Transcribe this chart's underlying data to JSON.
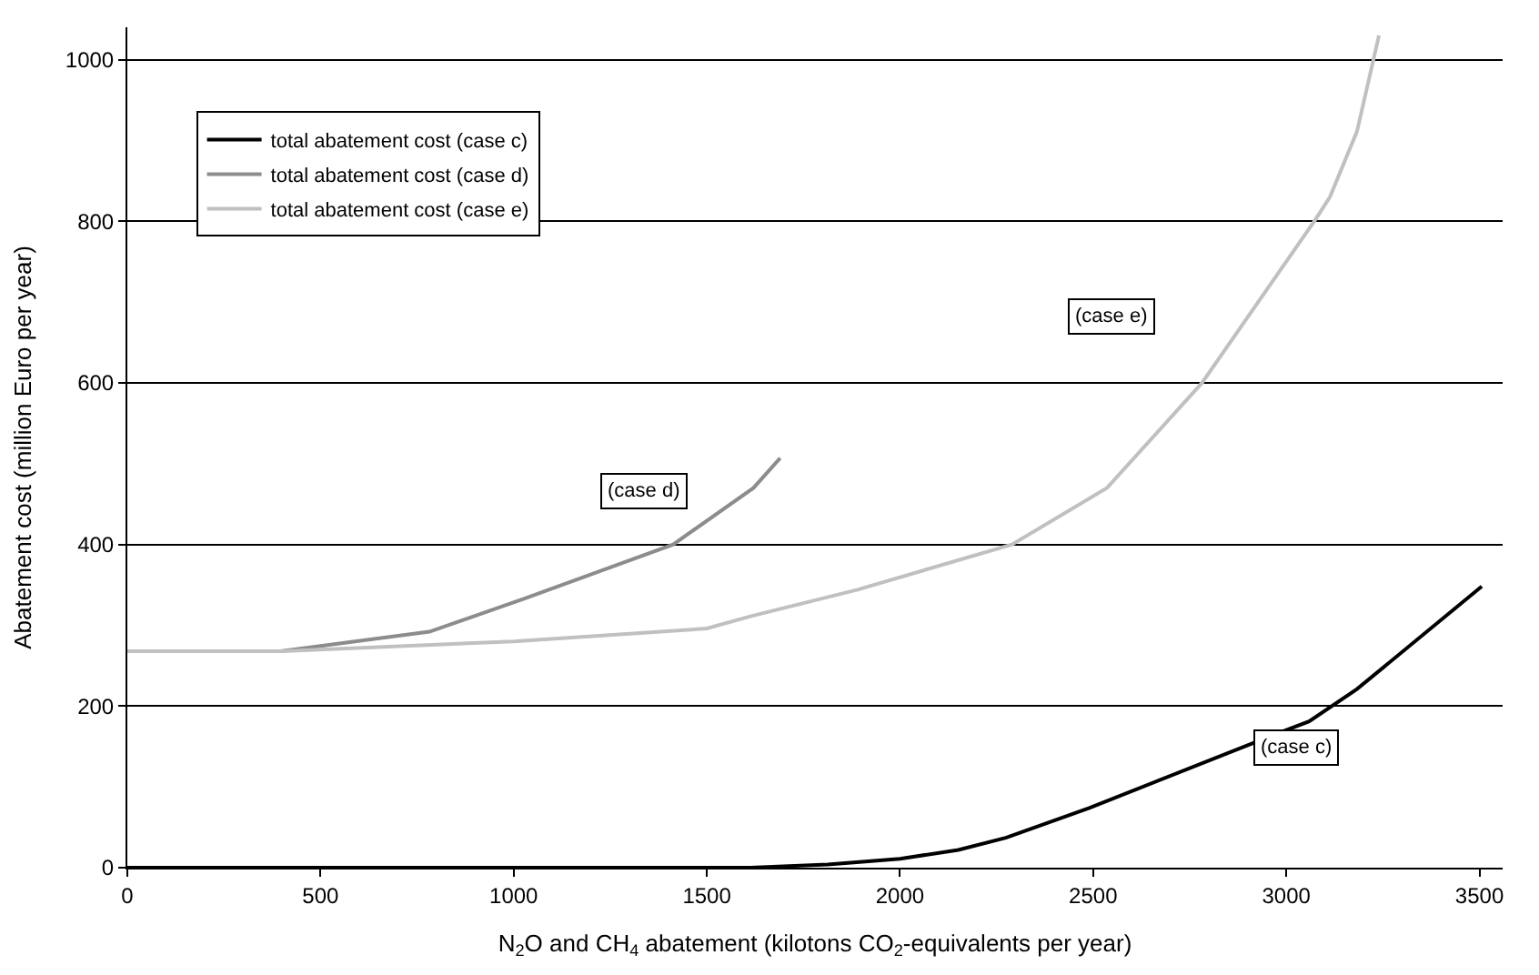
{
  "chart_data": {
    "type": "line",
    "xlabel": "N$_{2}$O and CH$_{4}$ abatement (kilotons CO$_{2}$-equivalents per year)",
    "ylabel": "Abatement cost (million Euro per year)",
    "xlim": [
      0,
      3560
    ],
    "xticks": [
      0,
      500,
      1000,
      1500,
      2000,
      2500,
      3000,
      3500
    ],
    "ylim": [
      0,
      1040
    ],
    "yticks": [
      0,
      200,
      400,
      600,
      800,
      1000
    ],
    "grid": "y",
    "legend": "top left",
    "marker": "none",
    "line_style": "solid",
    "series": [
      {
        "name": "total abatement cost (case c)",
        "color": "#000000",
        "x": [
          0,
          1613,
          1813,
          2000,
          2151,
          2274,
          2490,
          2982,
          3059,
          3183,
          3506
        ],
        "values": [
          0,
          0,
          4,
          11,
          22,
          37,
          74,
          167,
          181,
          221,
          348
        ]
      },
      {
        "name": "total abatement cost (case d)",
        "color": "#8c8c8c",
        "x": [
          0,
          397,
          782,
          1028,
          1413,
          1621,
          1690
        ],
        "values": [
          268,
          268,
          292,
          333,
          400,
          470,
          507
        ]
      },
      {
        "name": "total abatement cost (case e)",
        "color": "#c0c0c0",
        "x": [
          0,
          400,
          1000,
          1500,
          1613,
          1890,
          2290,
          2536,
          2782,
          3074,
          3113,
          3183,
          3240
        ],
        "values": [
          268,
          268,
          280,
          296,
          311,
          344,
          400,
          470,
          600,
          801,
          830,
          911,
          1030
        ]
      }
    ],
    "annotations": [
      "(case d)",
      "(case e)",
      "(case c)"
    ]
  }
}
